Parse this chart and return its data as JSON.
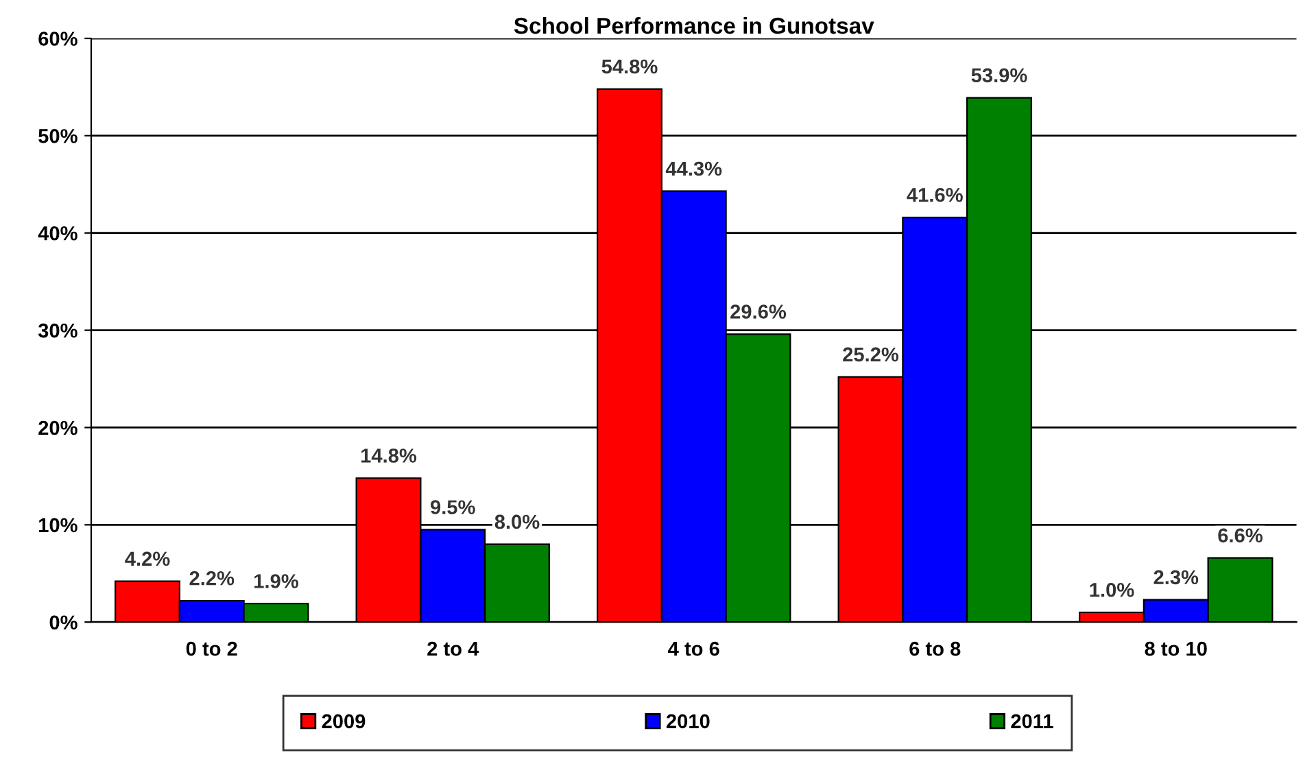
{
  "chart_data": {
    "type": "bar",
    "title": "School Performance in Gunotsav",
    "categories": [
      "0 to 2",
      "2 to 4",
      "4 to 6",
      "6 to 8",
      "8 to 10"
    ],
    "series": [
      {
        "name": "2009",
        "color": "#ff0000",
        "values": [
          4.2,
          14.8,
          54.8,
          25.2,
          1.0
        ],
        "value_labels": [
          "4.2%",
          "14.8%",
          "54.8%",
          "25.2%",
          "1.0%"
        ]
      },
      {
        "name": "2010",
        "color": "#0000ff",
        "values": [
          2.2,
          9.5,
          44.3,
          41.6,
          2.3
        ],
        "value_labels": [
          "2.2%",
          "9.5%",
          "44.3%",
          "41.6%",
          "2.3%"
        ]
      },
      {
        "name": "2011",
        "color": "#008000",
        "values": [
          1.9,
          8.0,
          29.6,
          53.9,
          6.6
        ],
        "value_labels": [
          "1.9%",
          "8.0%",
          "29.6%",
          "53.9%",
          "6.6%"
        ]
      }
    ],
    "ylim": [
      0,
      60
    ],
    "yticks": [
      {
        "value": 0,
        "label": "0%"
      },
      {
        "value": 10,
        "label": "10%"
      },
      {
        "value": 20,
        "label": "20%"
      },
      {
        "value": 30,
        "label": "30%"
      },
      {
        "value": 40,
        "label": "40%"
      },
      {
        "value": 50,
        "label": "50%"
      },
      {
        "value": 60,
        "label": "60%"
      }
    ],
    "grid": "y",
    "legend": "bottom"
  }
}
